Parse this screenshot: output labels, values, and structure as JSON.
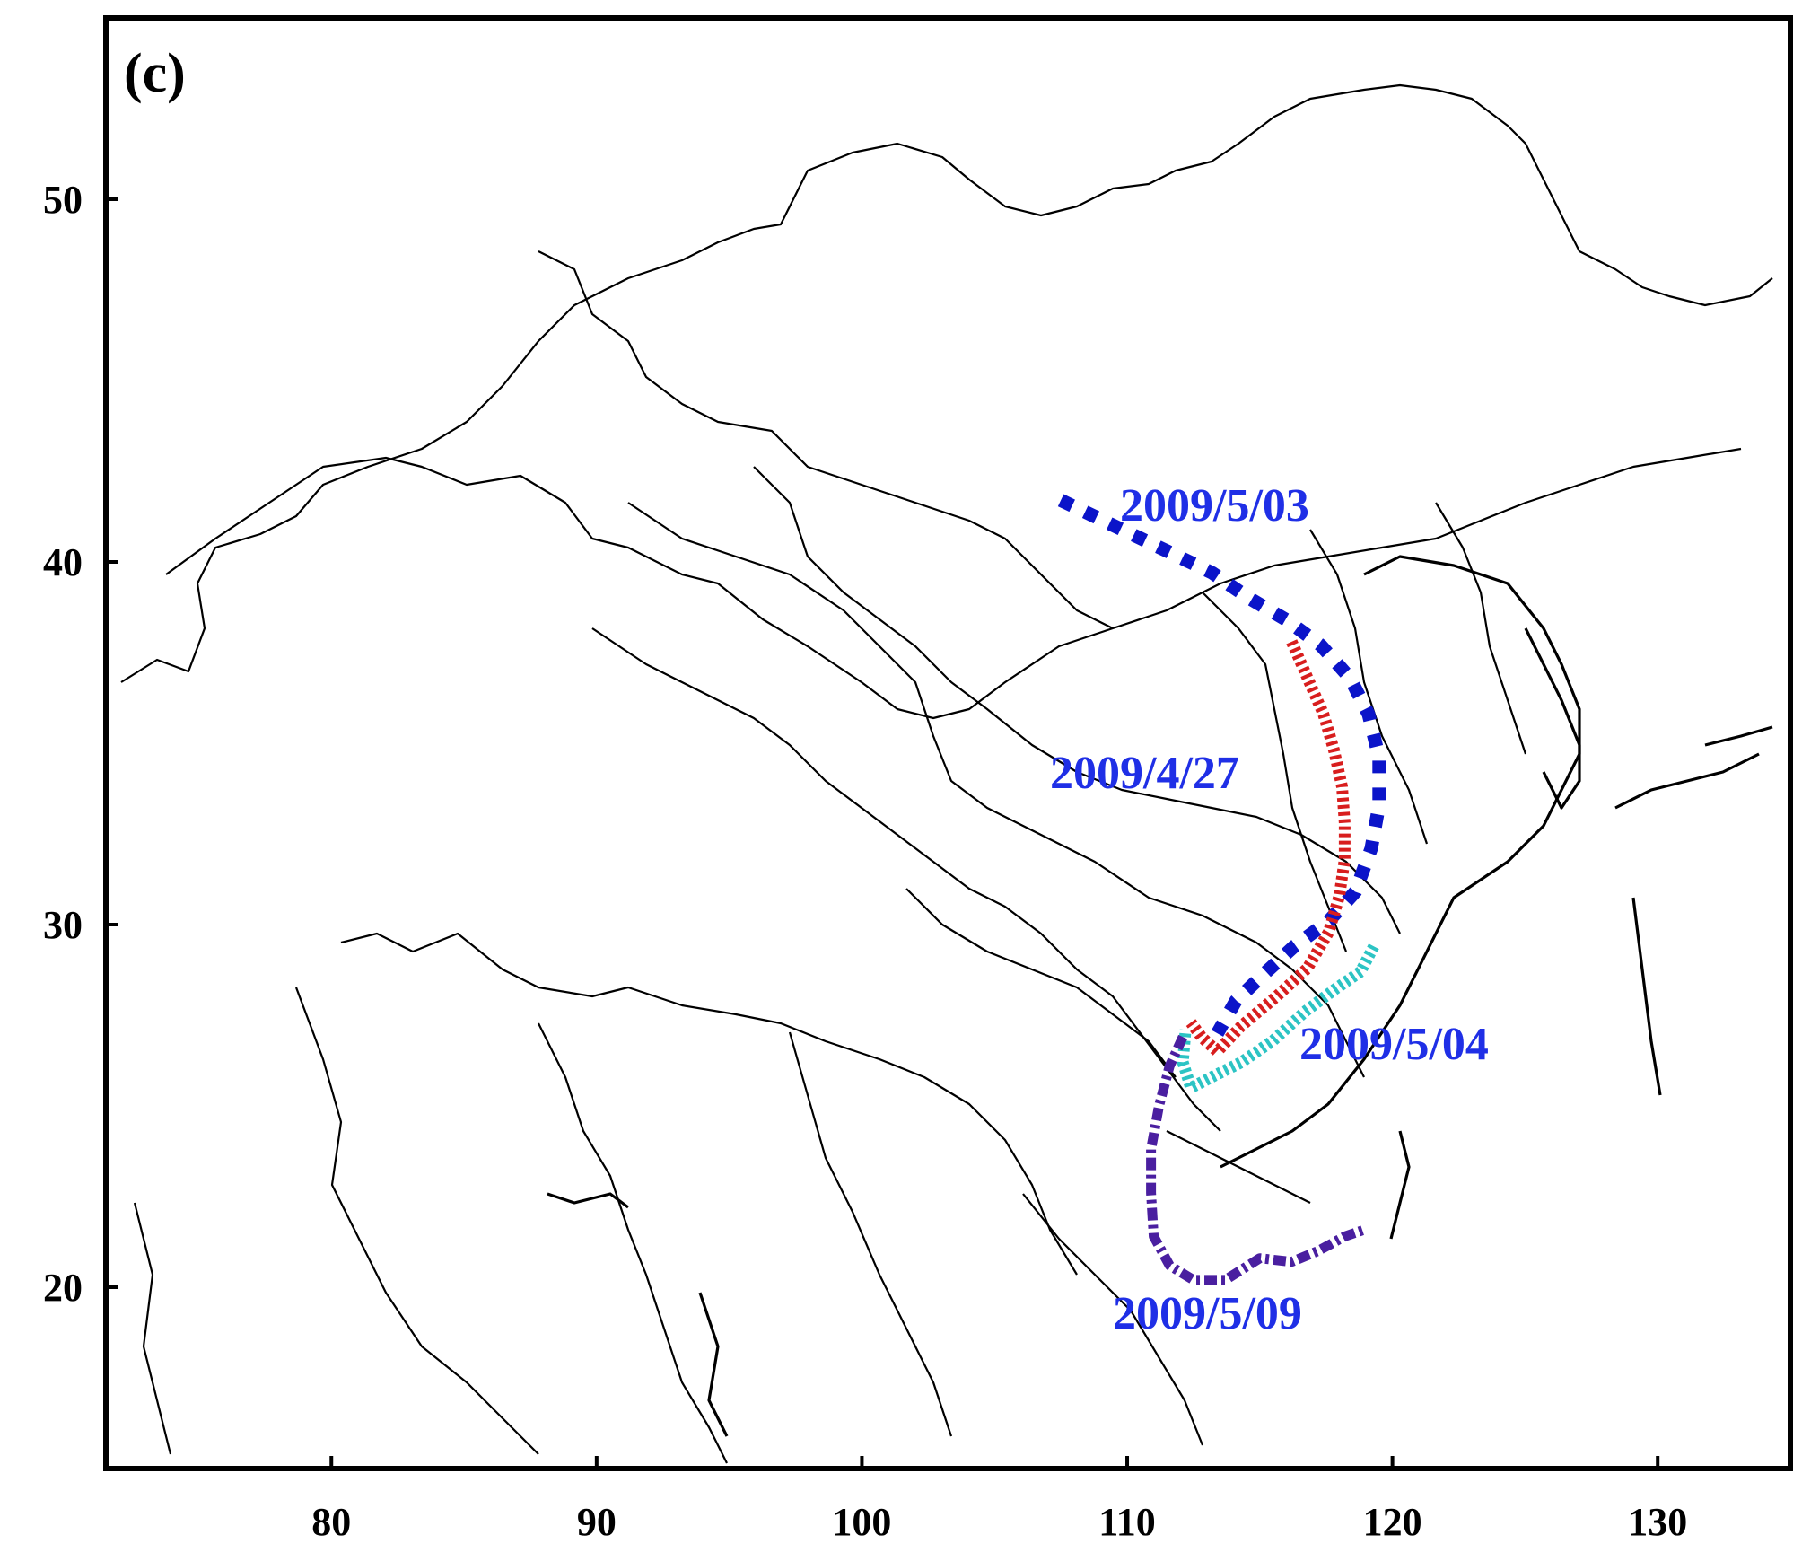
{
  "panel_label": "(c)",
  "axes": {
    "x_ticks": [
      "80",
      "90",
      "100",
      "110",
      "120",
      "130"
    ],
    "y_ticks": [
      "50",
      "40",
      "30",
      "20"
    ],
    "xlim": [
      71.5,
      135
    ],
    "ylim": [
      15,
      55
    ]
  },
  "fronts": [
    {
      "id": "front-2009-05-03",
      "label": "2009/5/03",
      "color": "#0b14c9",
      "label_color": "#1f2fe6",
      "style": "square-dots",
      "points": [
        [
          107.5,
          41.7
        ],
        [
          109.5,
          41
        ],
        [
          111.5,
          40.3
        ],
        [
          113.2,
          39.7
        ],
        [
          114.6,
          39
        ],
        [
          116,
          38.4
        ],
        [
          117.3,
          37.7
        ],
        [
          118.4,
          36.8
        ],
        [
          119.1,
          35.8
        ],
        [
          119.5,
          34.6
        ],
        [
          119.5,
          33.3
        ],
        [
          119.2,
          32.1
        ],
        [
          118.6,
          30.9
        ],
        [
          117.6,
          30.1
        ],
        [
          116.3,
          29.4
        ],
        [
          115.1,
          28.6
        ],
        [
          114.1,
          27.9
        ],
        [
          113.4,
          27
        ]
      ]
    },
    {
      "id": "front-2009-04-27",
      "label": "2009/4/27",
      "color": "#d81e1e",
      "label_color": "#1f2fe6",
      "style": "hatched",
      "points": [
        [
          116.2,
          37.8
        ],
        [
          116.8,
          36.8
        ],
        [
          117.4,
          35.8
        ],
        [
          117.8,
          34.8
        ],
        [
          118.1,
          33.8
        ],
        [
          118.2,
          32.8
        ],
        [
          118.2,
          31.8
        ],
        [
          118,
          30.8
        ],
        [
          117.6,
          29.8
        ],
        [
          116.8,
          28.8
        ],
        [
          115.6,
          28
        ],
        [
          114.3,
          27.2
        ],
        [
          113.4,
          26.5
        ],
        [
          112.8,
          26.9
        ],
        [
          112.4,
          27.3
        ]
      ]
    },
    {
      "id": "front-2009-05-04",
      "label": "2009/5/04",
      "color": "#2cc4c4",
      "label_color": "#1f2fe6",
      "style": "hatched",
      "points": [
        [
          119.3,
          29.4
        ],
        [
          118.8,
          28.7
        ],
        [
          117.8,
          28.2
        ],
        [
          116.7,
          27.6
        ],
        [
          115.5,
          26.8
        ],
        [
          114.3,
          26.2
        ],
        [
          113.2,
          25.8
        ],
        [
          112.4,
          25.5
        ],
        [
          112.1,
          26.2
        ],
        [
          112.2,
          27.1
        ]
      ]
    },
    {
      "id": "front-2009-05-09",
      "label": "2009/5/09",
      "color": "#4a1fa0",
      "label_color": "#1f2fe6",
      "style": "dash-dot",
      "points": [
        [
          112.1,
          26.9
        ],
        [
          111.6,
          26.1
        ],
        [
          111.2,
          25
        ],
        [
          110.9,
          23.8
        ],
        [
          110.9,
          22.6
        ],
        [
          111,
          21.4
        ],
        [
          111.6,
          20.6
        ],
        [
          112.5,
          20.2
        ],
        [
          113.7,
          20.2
        ],
        [
          115,
          20.8
        ],
        [
          116.2,
          20.7
        ],
        [
          117.2,
          21
        ],
        [
          118.2,
          21.4
        ],
        [
          119,
          21.6
        ]
      ]
    }
  ]
}
